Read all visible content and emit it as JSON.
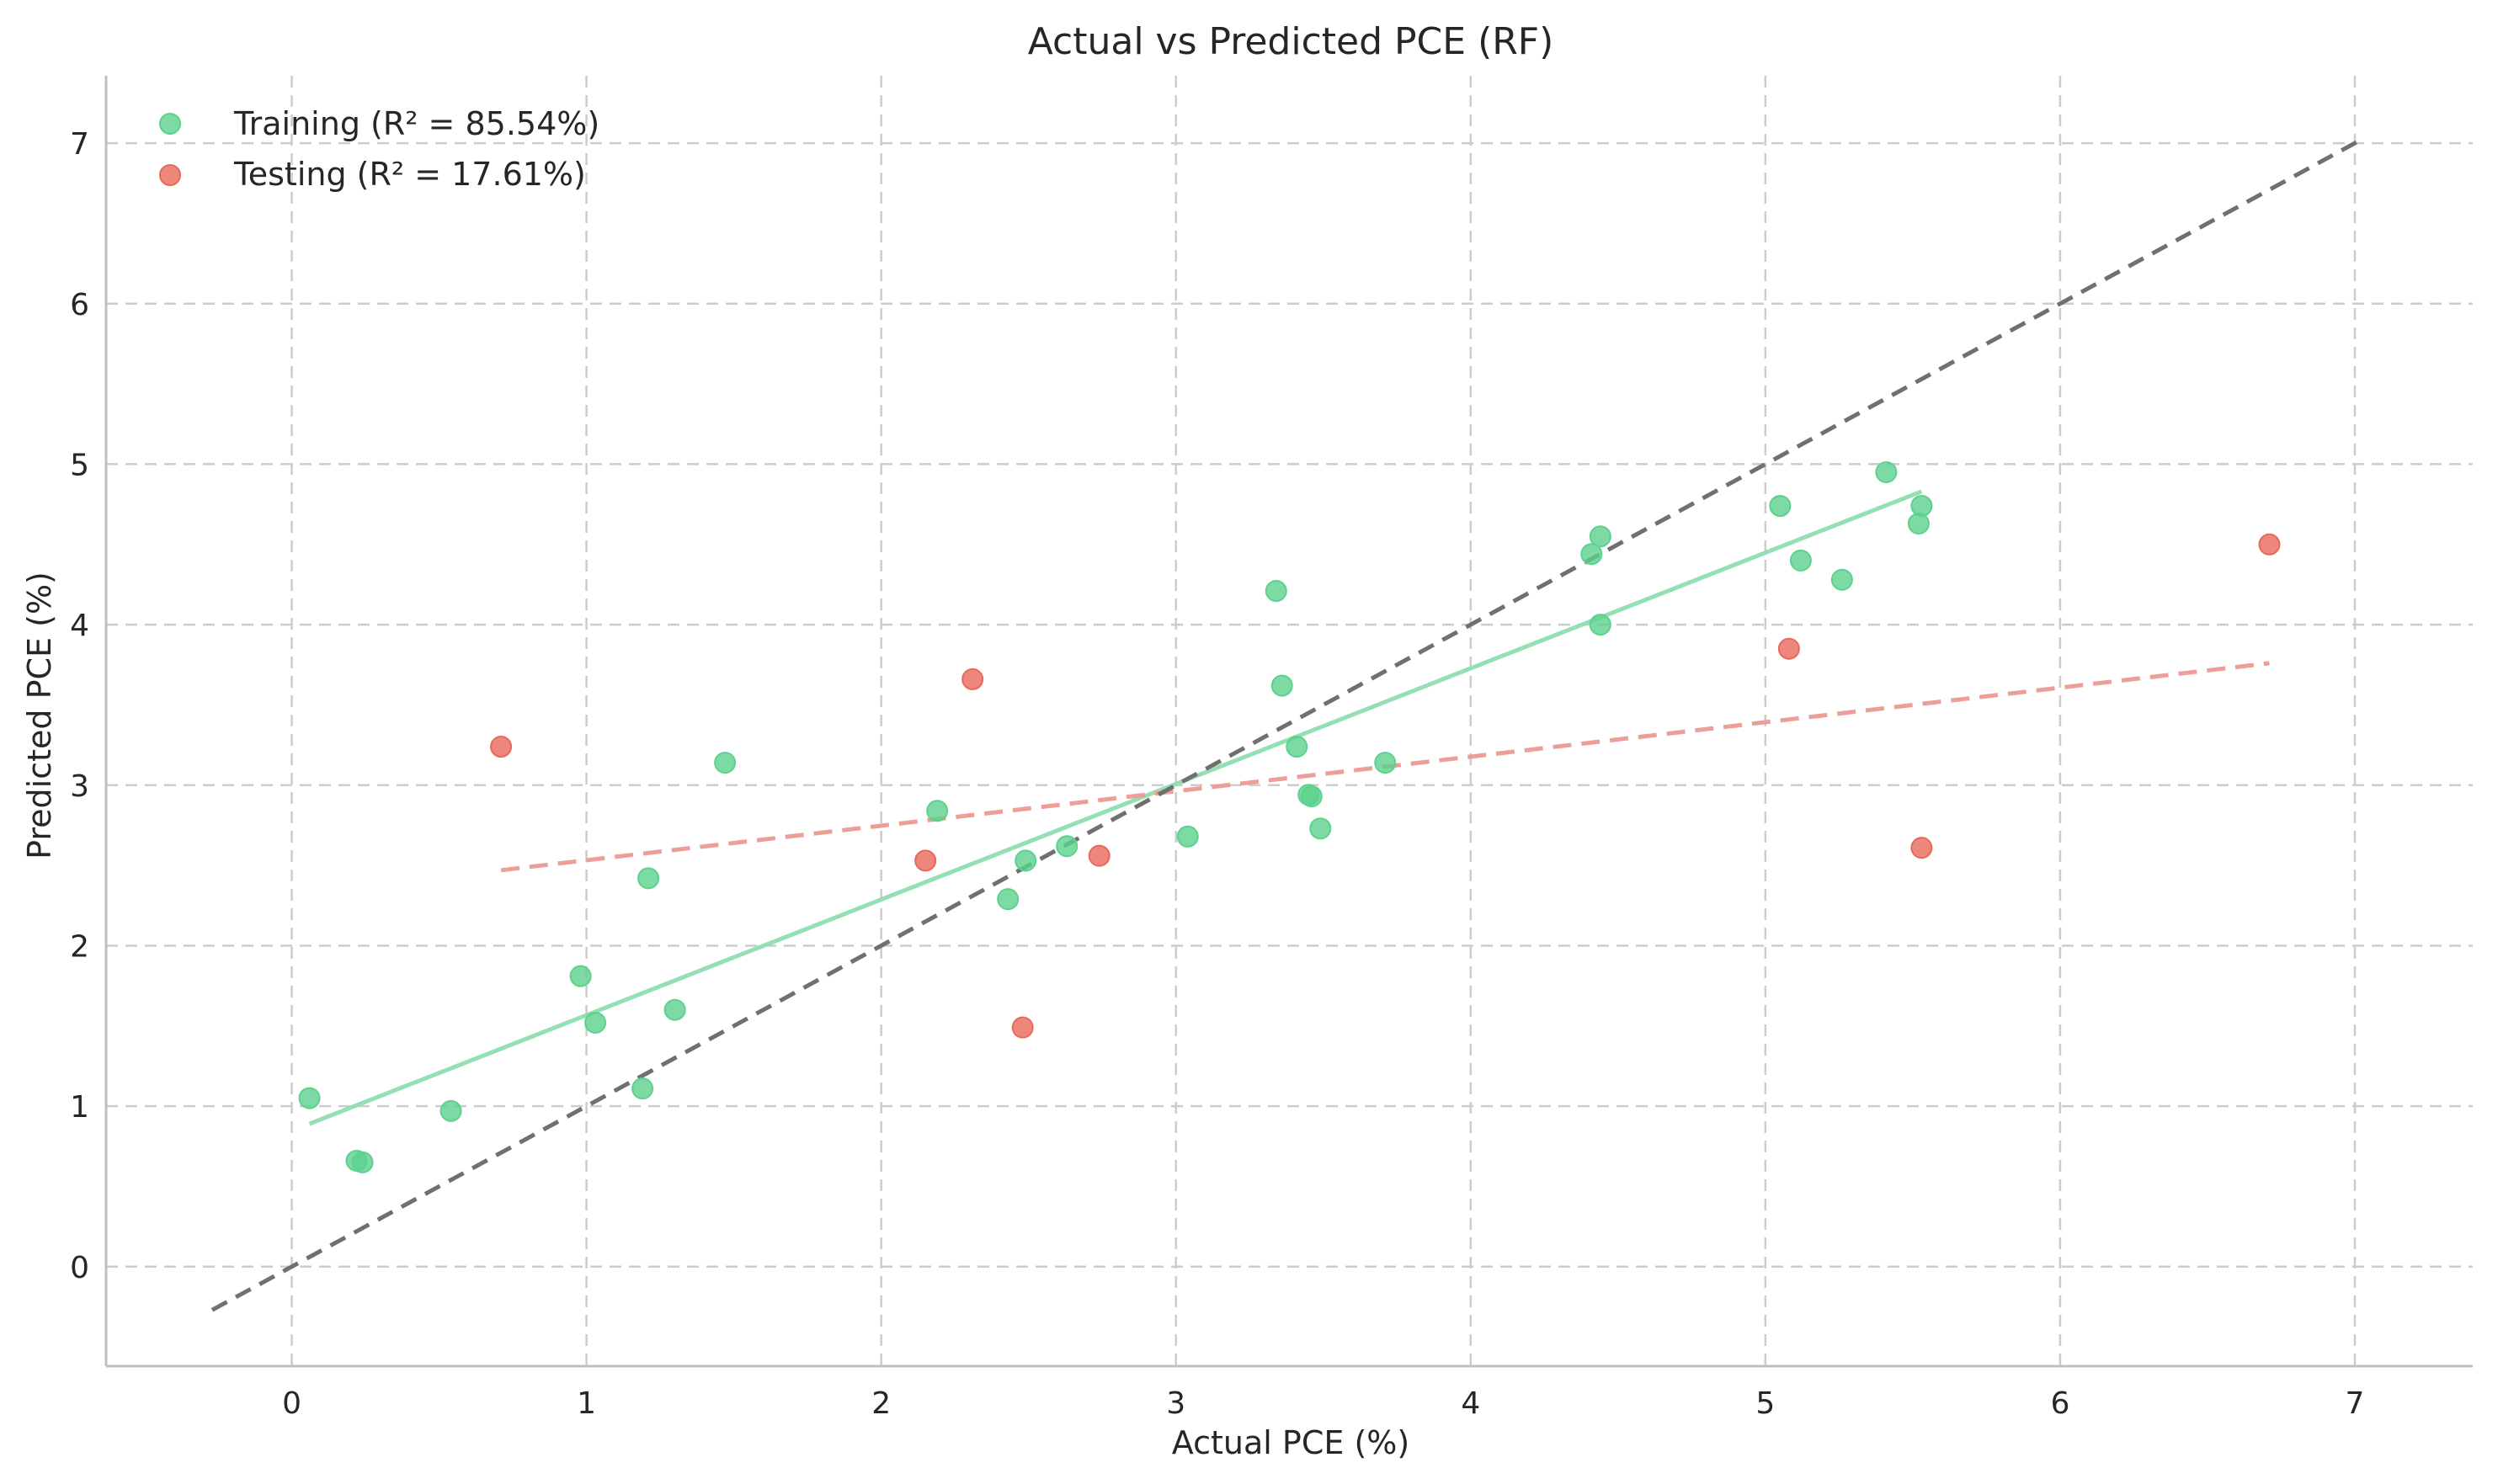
{
  "chart_data": {
    "type": "scatter",
    "title": "Actual vs Predicted PCE (RF)",
    "xlabel": "Actual PCE (%)",
    "ylabel": "Predicted PCE (%)",
    "xlim": [
      -0.63,
      7.4
    ],
    "ylim": [
      -0.62,
      7.42
    ],
    "xticks": [
      0,
      1,
      2,
      3,
      4,
      5,
      6,
      7
    ],
    "yticks": [
      0,
      1,
      2,
      3,
      4,
      5,
      6,
      7
    ],
    "grid": true,
    "legend_position": "top-left",
    "series": [
      {
        "name": "Training (R² = 85.54%)",
        "color": "#5dd18d",
        "points": [
          [
            0.06,
            1.05
          ],
          [
            0.22,
            0.66
          ],
          [
            0.24,
            0.65
          ],
          [
            0.54,
            0.97
          ],
          [
            0.98,
            1.81
          ],
          [
            1.03,
            1.52
          ],
          [
            1.19,
            1.11
          ],
          [
            1.21,
            2.42
          ],
          [
            1.3,
            1.6
          ],
          [
            1.47,
            3.14
          ],
          [
            2.19,
            2.84
          ],
          [
            2.43,
            2.29
          ],
          [
            2.49,
            2.53
          ],
          [
            2.63,
            2.62
          ],
          [
            3.04,
            2.68
          ],
          [
            3.34,
            4.21
          ],
          [
            3.36,
            3.62
          ],
          [
            3.41,
            3.24
          ],
          [
            3.45,
            2.94
          ],
          [
            3.46,
            2.93
          ],
          [
            3.49,
            2.73
          ],
          [
            3.71,
            3.14
          ],
          [
            4.41,
            4.44
          ],
          [
            4.44,
            4.55
          ],
          [
            4.44,
            4.0
          ],
          [
            5.05,
            4.74
          ],
          [
            5.12,
            4.4
          ],
          [
            5.26,
            4.28
          ],
          [
            5.41,
            4.95
          ],
          [
            5.52,
            4.63
          ],
          [
            5.53,
            4.74
          ]
        ],
        "fit": {
          "x": [
            0.06,
            5.53
          ],
          "y": [
            0.89,
            4.83
          ],
          "color": "#8fdeae",
          "style": "solid"
        }
      },
      {
        "name": "Testing (R² = 17.61%)",
        "color": "#e8695b",
        "points": [
          [
            0.71,
            3.24
          ],
          [
            2.15,
            2.53
          ],
          [
            2.31,
            3.66
          ],
          [
            2.48,
            1.49
          ],
          [
            2.74,
            2.56
          ],
          [
            5.08,
            3.85
          ],
          [
            5.53,
            2.61
          ],
          [
            6.71,
            4.5
          ]
        ],
        "fit": {
          "x": [
            0.71,
            6.71
          ],
          "y": [
            2.47,
            3.76
          ],
          "color": "#eb9a92",
          "style": "dashed"
        }
      }
    ],
    "reference_line": {
      "x": [
        -0.27,
        7.03
      ],
      "y": [
        -0.27,
        7.03
      ],
      "color": "#707070",
      "style": "dashed"
    }
  }
}
